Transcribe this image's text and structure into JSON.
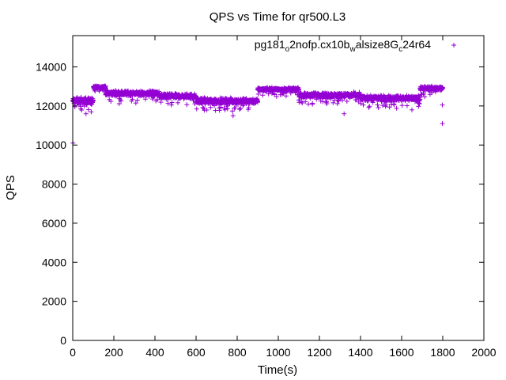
{
  "chart_data": {
    "type": "scatter",
    "title": "QPS vs Time for qr500.L3",
    "xlabel": "Time(s)",
    "ylabel": "QPS",
    "xlim": [
      0,
      2000
    ],
    "ylim": [
      0,
      15600
    ],
    "xticks": [
      0,
      200,
      400,
      600,
      800,
      1000,
      1200,
      1400,
      1600,
      1800,
      2000
    ],
    "yticks": [
      0,
      2000,
      4000,
      6000,
      8000,
      10000,
      12000,
      14000
    ],
    "grid": false,
    "legend_position": "top-right",
    "marker": "+",
    "color": "#9400d3",
    "series": [
      {
        "name": "pg181_o2nofp.cx10b_walsize8G_c24r64",
        "name_parts": [
          {
            "text": "pg181",
            "sub": false
          },
          {
            "text": "o",
            "sub": true
          },
          {
            "text": "2nofp.cx10b",
            "sub": false
          },
          {
            "text": "w",
            "sub": true
          },
          {
            "text": "alsize8G",
            "sub": false
          },
          {
            "text": "c",
            "sub": true
          },
          {
            "text": "24r64",
            "sub": false
          }
        ],
        "segments": [
          {
            "x_start": 0,
            "x_end": 100,
            "level": 12250,
            "spread": 250
          },
          {
            "x_start": 100,
            "x_end": 160,
            "level": 12950,
            "spread": 120
          },
          {
            "x_start": 160,
            "x_end": 420,
            "level": 12650,
            "spread": 180
          },
          {
            "x_start": 420,
            "x_end": 600,
            "level": 12500,
            "spread": 180
          },
          {
            "x_start": 600,
            "x_end": 900,
            "level": 12250,
            "spread": 200
          },
          {
            "x_start": 900,
            "x_end": 1100,
            "level": 12850,
            "spread": 120
          },
          {
            "x_start": 1100,
            "x_end": 1400,
            "level": 12550,
            "spread": 180
          },
          {
            "x_start": 1400,
            "x_end": 1690,
            "level": 12400,
            "spread": 180
          },
          {
            "x_start": 1690,
            "x_end": 1800,
            "level": 12900,
            "spread": 150
          }
        ],
        "outliers": [
          {
            "x": 1,
            "y": 10100
          },
          {
            "x": 90,
            "y": 11700
          },
          {
            "x": 780,
            "y": 11500
          },
          {
            "x": 1320,
            "y": 11600
          },
          {
            "x": 1650,
            "y": 11800
          },
          {
            "x": 1798,
            "y": 11100
          },
          {
            "x": 1798,
            "y": 12050
          }
        ]
      }
    ]
  }
}
